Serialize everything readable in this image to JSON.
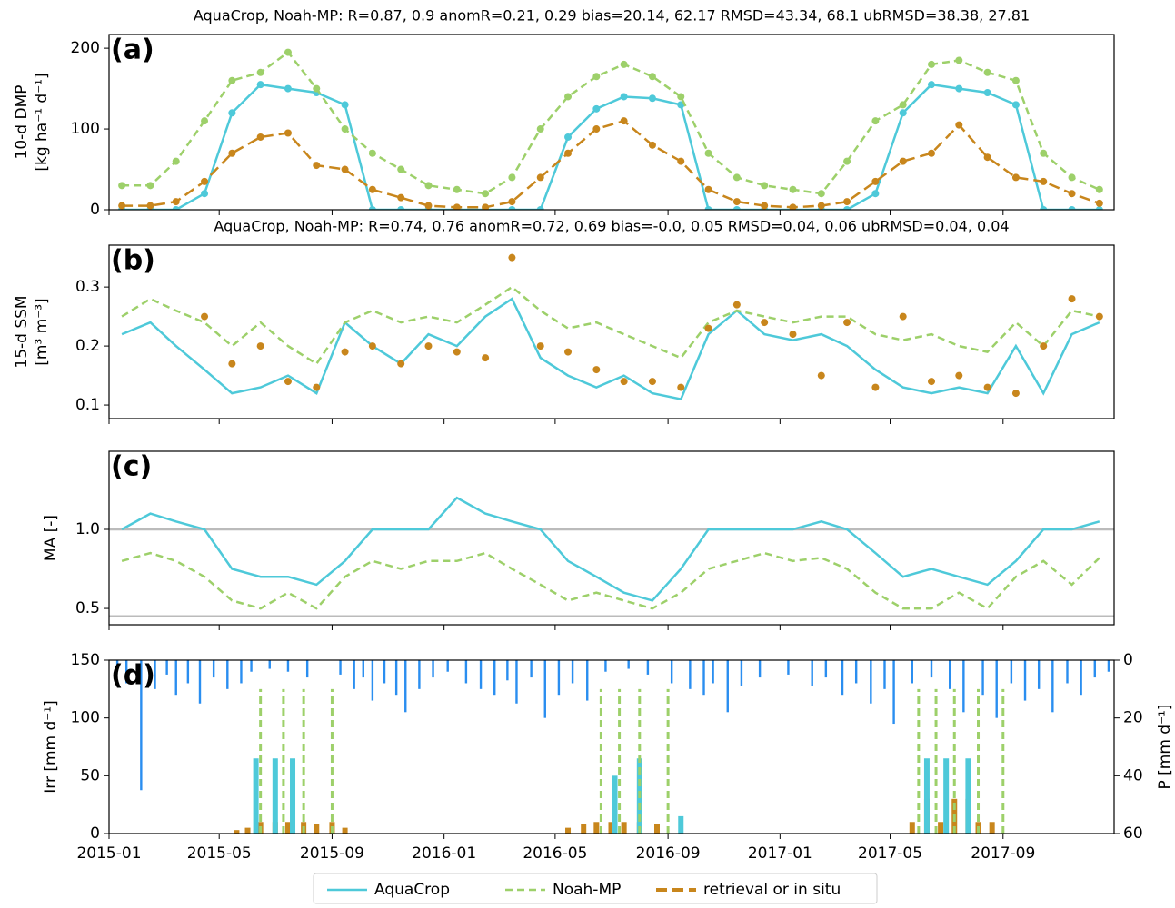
{
  "chart_data": [
    {
      "type": "line",
      "title": "AquaCrop, Noah-MP: R=0.87, 0.9    anomR=0.21, 0.29    bias=20.14, 62.17    RMSD=43.34, 68.1    ubRMSD=38.38, 27.81",
      "panel_label": "(a)",
      "ylabel": [
        "10-d DMP",
        "[kg ha⁻¹ d⁻¹]"
      ],
      "markers": true,
      "xlim": [
        "2015-01-01",
        "2017-12-31"
      ],
      "ylim": [
        0,
        217
      ],
      "yticks": [
        0,
        100,
        200
      ],
      "x": [
        "2015-01-15",
        "2015-02-15",
        "2015-03-15",
        "2015-04-15",
        "2015-05-15",
        "2015-06-15",
        "2015-07-15",
        "2015-08-15",
        "2015-09-15",
        "2015-10-15",
        "2015-11-15",
        "2015-12-15",
        "2016-01-15",
        "2016-02-15",
        "2016-03-15",
        "2016-04-15",
        "2016-05-15",
        "2016-06-15",
        "2016-07-15",
        "2016-08-15",
        "2016-09-15",
        "2016-10-15",
        "2016-11-15",
        "2016-12-15",
        "2017-01-15",
        "2017-02-15",
        "2017-03-15",
        "2017-04-15",
        "2017-05-15",
        "2017-06-15",
        "2017-07-15",
        "2017-08-15",
        "2017-09-15",
        "2017-10-15",
        "2017-11-15",
        "2017-12-15"
      ],
      "series": [
        {
          "name": "AquaCrop",
          "color": "#4ec9d9",
          "values": [
            0,
            0,
            0,
            20,
            120,
            155,
            150,
            145,
            130,
            0,
            0,
            0,
            0,
            0,
            0,
            0,
            90,
            125,
            140,
            138,
            130,
            0,
            0,
            0,
            0,
            0,
            0,
            20,
            120,
            155,
            150,
            145,
            130,
            0,
            0,
            0
          ]
        },
        {
          "name": "Noah-MP",
          "color": "#9dd06a",
          "dash": "8 5",
          "values": [
            30,
            30,
            60,
            110,
            160,
            170,
            195,
            150,
            100,
            70,
            50,
            30,
            25,
            20,
            40,
            100,
            140,
            165,
            180,
            165,
            140,
            70,
            40,
            30,
            25,
            20,
            60,
            110,
            130,
            180,
            185,
            170,
            160,
            70,
            40,
            25
          ]
        },
        {
          "name": "retrieval or in situ",
          "color": "#c8861c",
          "dash": "12 6",
          "values": [
            5,
            5,
            10,
            35,
            70,
            90,
            95,
            55,
            50,
            25,
            15,
            5,
            3,
            3,
            10,
            40,
            70,
            100,
            110,
            80,
            60,
            25,
            10,
            5,
            3,
            5,
            10,
            35,
            60,
            70,
            105,
            65,
            40,
            35,
            20,
            8
          ]
        }
      ]
    },
    {
      "type": "line",
      "title": "AquaCrop, Noah-MP: R=0.74, 0.76    anomR=0.72, 0.69    bias=-0.0, 0.05    RMSD=0.04, 0.06    ubRMSD=0.04, 0.04",
      "panel_label": "(b)",
      "ylabel": [
        "15-d SSM",
        "[m³ m⁻³]"
      ],
      "xlim": [
        "2015-01-01",
        "2017-12-31"
      ],
      "ylim": [
        0.077,
        0.371
      ],
      "yticks": [
        0.1,
        0.2,
        0.3
      ],
      "x": [
        "2015-01-15",
        "2015-02-15",
        "2015-03-15",
        "2015-04-15",
        "2015-05-15",
        "2015-06-15",
        "2015-07-15",
        "2015-08-15",
        "2015-09-15",
        "2015-10-15",
        "2015-11-15",
        "2015-12-15",
        "2016-01-15",
        "2016-02-15",
        "2016-03-15",
        "2016-04-15",
        "2016-05-15",
        "2016-06-15",
        "2016-07-15",
        "2016-08-15",
        "2016-09-15",
        "2016-10-15",
        "2016-11-15",
        "2016-12-15",
        "2017-01-15",
        "2017-02-15",
        "2017-03-15",
        "2017-04-15",
        "2017-05-15",
        "2017-06-15",
        "2017-07-15",
        "2017-08-15",
        "2017-09-15",
        "2017-10-15",
        "2017-11-15",
        "2017-12-15"
      ],
      "series": [
        {
          "color": "#4ec9d9",
          "values": [
            0.22,
            0.24,
            0.2,
            0.16,
            0.12,
            0.13,
            0.15,
            0.12,
            0.24,
            0.2,
            0.17,
            0.22,
            0.2,
            0.25,
            0.28,
            0.18,
            0.15,
            0.13,
            0.15,
            0.12,
            0.11,
            0.22,
            0.26,
            0.22,
            0.21,
            0.22,
            0.2,
            0.16,
            0.13,
            0.12,
            0.13,
            0.12,
            0.2,
            0.12,
            0.22,
            0.24
          ]
        },
        {
          "color": "#9dd06a",
          "dash": "8 5",
          "values": [
            0.25,
            0.28,
            0.26,
            0.24,
            0.2,
            0.24,
            0.2,
            0.17,
            0.24,
            0.26,
            0.24,
            0.25,
            0.24,
            0.27,
            0.3,
            0.26,
            0.23,
            0.24,
            0.22,
            0.2,
            0.18,
            0.24,
            0.26,
            0.25,
            0.24,
            0.25,
            0.25,
            0.22,
            0.21,
            0.22,
            0.2,
            0.19,
            0.24,
            0.2,
            0.26,
            0.25
          ]
        },
        {
          "color": "#c8861c",
          "markers": true,
          "nolines": true,
          "values": [
            null,
            null,
            null,
            0.25,
            0.17,
            0.2,
            0.14,
            0.13,
            0.19,
            0.2,
            0.17,
            0.2,
            0.19,
            0.18,
            0.35,
            0.2,
            0.19,
            0.16,
            0.14,
            0.14,
            0.13,
            0.23,
            0.27,
            0.24,
            0.22,
            0.15,
            0.24,
            0.13,
            0.25,
            0.14,
            0.15,
            0.13,
            0.12,
            0.2,
            0.28,
            0.25
          ]
        }
      ]
    },
    {
      "type": "line",
      "panel_label": "(c)",
      "ylabel": [
        "MA [-]"
      ],
      "hlines": [
        1.0,
        0.45
      ],
      "xlim": [
        "2015-01-01",
        "2017-12-31"
      ],
      "ylim": [
        0.397,
        1.494
      ],
      "yticks": [
        {
          "value": 0.5,
          "label": "0.5"
        },
        {
          "value": 1.0,
          "label": "1.0"
        }
      ],
      "x": [
        "2015-01-15",
        "2015-02-15",
        "2015-03-15",
        "2015-04-15",
        "2015-05-15",
        "2015-06-15",
        "2015-07-15",
        "2015-08-15",
        "2015-09-15",
        "2015-10-15",
        "2015-11-15",
        "2015-12-15",
        "2016-01-15",
        "2016-02-15",
        "2016-03-15",
        "2016-04-15",
        "2016-05-15",
        "2016-06-15",
        "2016-07-15",
        "2016-08-15",
        "2016-09-15",
        "2016-10-15",
        "2016-11-15",
        "2016-12-15",
        "2017-01-15",
        "2017-02-15",
        "2017-03-15",
        "2017-04-15",
        "2017-05-15",
        "2017-06-15",
        "2017-07-15",
        "2017-08-15",
        "2017-09-15",
        "2017-10-15",
        "2017-11-15",
        "2017-12-15"
      ],
      "series": [
        {
          "color": "#4ec9d9",
          "values": [
            1.0,
            1.1,
            1.05,
            1.0,
            0.75,
            0.7,
            0.7,
            0.65,
            0.8,
            1.0,
            1.0,
            1.0,
            1.2,
            1.1,
            1.05,
            1.0,
            0.8,
            0.7,
            0.6,
            0.55,
            0.75,
            1.0,
            1.0,
            1.0,
            1.0,
            1.05,
            1.0,
            0.85,
            0.7,
            0.75,
            0.7,
            0.65,
            0.8,
            1.0,
            1.0,
            1.05
          ]
        },
        {
          "color": "#9dd06a",
          "dash": "8 5",
          "values": [
            0.8,
            0.85,
            0.8,
            0.7,
            0.55,
            0.5,
            0.6,
            0.5,
            0.7,
            0.8,
            0.75,
            0.8,
            0.8,
            0.85,
            0.75,
            0.65,
            0.55,
            0.6,
            0.55,
            0.5,
            0.6,
            0.75,
            0.8,
            0.85,
            0.8,
            0.82,
            0.75,
            0.6,
            0.5,
            0.5,
            0.6,
            0.5,
            0.7,
            0.8,
            0.65,
            0.82
          ]
        }
      ]
    },
    {
      "type": "bar",
      "panel_label": "(d)",
      "ylabel": [
        "Irr [mm d⁻¹]"
      ],
      "y2label": "P [mm d⁻¹]",
      "xlim": [
        "2015-01-01",
        "2017-12-31"
      ],
      "xticks": [
        "2015-01",
        "2015-05",
        "2015-09",
        "2016-01",
        "2016-05",
        "2016-09",
        "2017-01",
        "2017-05",
        "2017-09"
      ],
      "ylim": [
        0,
        150
      ],
      "yticks": [
        0,
        50,
        100,
        150
      ],
      "y2lim": [
        60,
        0
      ],
      "y2ticks": [
        0,
        20,
        40,
        60
      ],
      "series": [
        {
          "color": "#2a8ef0",
          "axis": "y2",
          "x": [
            "2015-01-10",
            "2015-01-20",
            "2015-02-05",
            "2015-02-20",
            "2015-03-05",
            "2015-03-15",
            "2015-03-28",
            "2015-04-10",
            "2015-04-25",
            "2015-05-10",
            "2015-05-25",
            "2015-06-05",
            "2015-06-25",
            "2015-07-15",
            "2015-08-05",
            "2015-09-10",
            "2015-09-25",
            "2015-10-05",
            "2015-10-15",
            "2015-10-28",
            "2015-11-10",
            "2015-11-20",
            "2015-12-05",
            "2015-12-20",
            "2016-01-05",
            "2016-01-25",
            "2016-02-10",
            "2016-02-25",
            "2016-03-10",
            "2016-03-20",
            "2016-04-05",
            "2016-04-20",
            "2016-05-05",
            "2016-05-20",
            "2016-06-05",
            "2016-06-25",
            "2016-07-20",
            "2016-08-10",
            "2016-09-05",
            "2016-09-25",
            "2016-10-10",
            "2016-10-20",
            "2016-11-05",
            "2016-11-20",
            "2016-12-10",
            "2017-01-10",
            "2017-02-05",
            "2017-02-20",
            "2017-03-10",
            "2017-03-25",
            "2017-04-10",
            "2017-04-25",
            "2017-05-05",
            "2017-05-25",
            "2017-06-15",
            "2017-07-05",
            "2017-07-20",
            "2017-08-10",
            "2017-08-25",
            "2017-09-10",
            "2017-09-25",
            "2017-10-10",
            "2017-10-25",
            "2017-11-10",
            "2017-11-25",
            "2017-12-10",
            "2017-12-25"
          ],
          "values": [
            3,
            8,
            45,
            10,
            5,
            12,
            8,
            15,
            6,
            10,
            8,
            4,
            3,
            4,
            6,
            5,
            10,
            6,
            14,
            8,
            12,
            18,
            10,
            6,
            4,
            8,
            10,
            12,
            7,
            15,
            6,
            20,
            12,
            8,
            14,
            4,
            3,
            5,
            8,
            10,
            12,
            8,
            18,
            9,
            6,
            5,
            9,
            6,
            12,
            8,
            15,
            10,
            22,
            8,
            6,
            10,
            18,
            12,
            20,
            8,
            14,
            10,
            18,
            8,
            12,
            6,
            4
          ]
        },
        {
          "color": "#c8861c",
          "x": [
            "2015-05-20",
            "2015-06-01",
            "2015-06-15",
            "2015-07-01",
            "2015-07-15",
            "2015-08-01",
            "2015-08-15",
            "2015-09-01",
            "2015-09-15",
            "2016-05-15",
            "2016-06-01",
            "2016-06-15",
            "2016-07-01",
            "2016-07-15",
            "2016-08-01",
            "2016-08-20",
            "2017-05-25",
            "2017-06-10",
            "2017-06-25",
            "2017-07-10",
            "2017-07-25",
            "2017-08-05",
            "2017-08-20"
          ],
          "values": [
            3,
            5,
            10,
            10,
            10,
            10,
            8,
            10,
            5,
            5,
            8,
            10,
            10,
            10,
            10,
            8,
            10,
            30,
            10,
            30,
            30,
            10,
            10
          ]
        },
        {
          "color": "#4ec9d9",
          "x": [
            "2015-06-10",
            "2015-07-01",
            "2015-07-20",
            "2016-07-05",
            "2016-08-01",
            "2016-09-15",
            "2017-06-10",
            "2017-07-01",
            "2017-07-25"
          ],
          "values": [
            65,
            65,
            65,
            50,
            65,
            15,
            65,
            65,
            65
          ]
        },
        {
          "color": "#9dd06a",
          "dash": "8 5",
          "x": [
            "2015-06-15",
            "2015-07-10",
            "2015-08-01",
            "2015-09-01",
            "2016-06-20",
            "2016-07-10",
            "2016-08-01",
            "2016-09-01",
            "2017-06-01",
            "2017-06-20",
            "2017-07-10",
            "2017-08-05",
            "2017-09-01"
          ],
          "values": [
            125,
            125,
            125,
            125,
            125,
            125,
            125,
            125,
            125,
            125,
            125,
            125,
            125
          ]
        }
      ]
    }
  ]
}
